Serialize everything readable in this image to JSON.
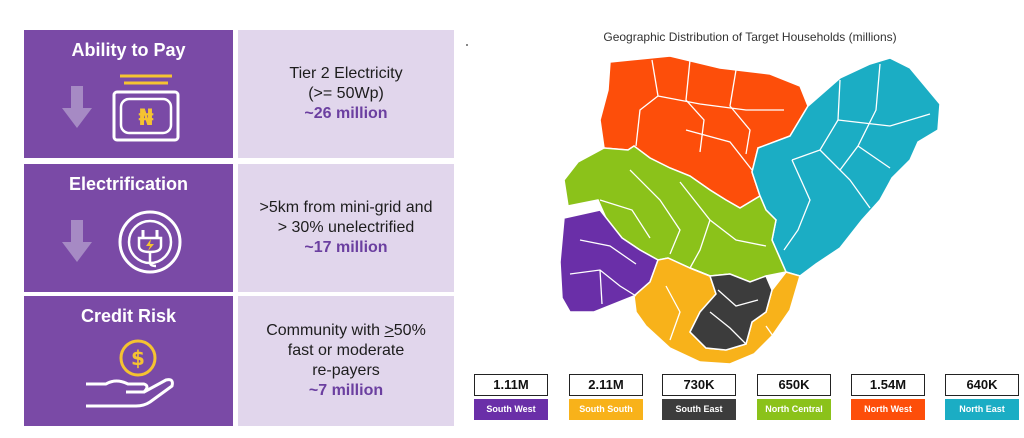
{
  "funnel": [
    {
      "title": "Ability to Pay",
      "lines": [
        "Tier 2 Electricity",
        "(>= 50Wp)"
      ],
      "count": "~26 million"
    },
    {
      "title": "Electrification",
      "lines": [
        ">5km from mini-grid and",
        "> 30% unelectrified"
      ],
      "count": "~17 million"
    },
    {
      "title": "Credit Risk",
      "line_pre": "Community with ",
      "line_underlined": ">",
      "line_post": "50%",
      "lines": [
        "fast or moderate",
        "re-payers"
      ],
      "count": "~7 million"
    }
  ],
  "currency_symbol": "₦",
  "dollar_symbol": "$",
  "chart_data": {
    "type": "map",
    "title": "Geographic Distribution of Target Households (millions)",
    "regions": [
      {
        "name": "South West",
        "value": "1.11M",
        "color": "#6a2fa8"
      },
      {
        "name": "South South",
        "value": "2.11M",
        "color": "#f8b21a"
      },
      {
        "name": "South East",
        "value": "730K",
        "color": "#3c3c3c"
      },
      {
        "name": "North Central",
        "value": "650K",
        "color": "#8bc21a"
      },
      {
        "name": "North West",
        "value": "1.54M",
        "color": "#fd4e0a"
      },
      {
        "name": "North East",
        "value": "640K",
        "color": "#1badc4"
      }
    ]
  },
  "colors": {
    "purple": "#7a4aa6",
    "lavender": "#e1d6ec",
    "accent": "#6b3fa0",
    "gold": "#f5c331"
  }
}
